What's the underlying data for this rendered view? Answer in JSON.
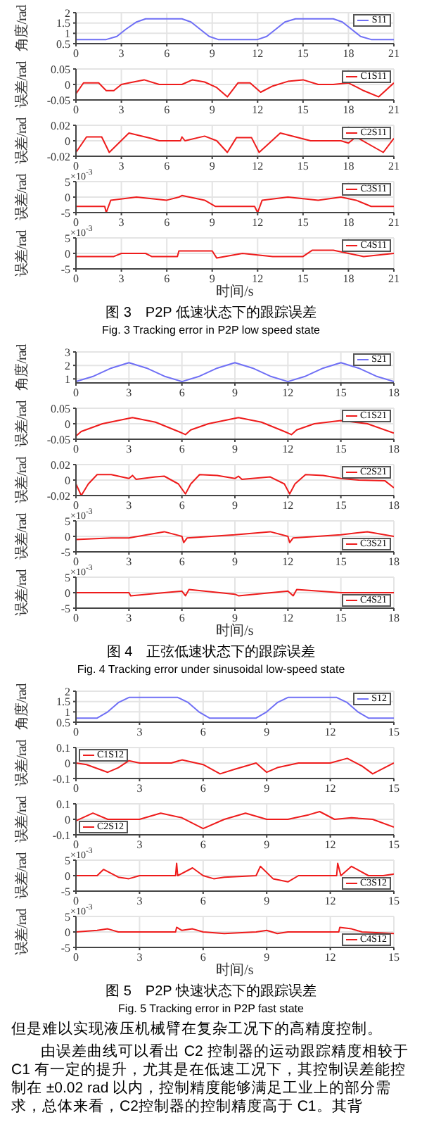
{
  "chart_data": [
    {
      "type": "line",
      "ylabel": "角度/rad",
      "x": [
        0,
        2,
        2.7,
        3.3,
        4,
        4.6,
        7,
        7.6,
        8.2,
        8.8,
        9.4,
        12,
        12.6,
        13.2,
        13.8,
        14.5,
        17,
        17.6,
        18.2,
        18.8,
        19.5,
        21
      ],
      "series": [
        {
          "name": "S11",
          "color": "#6f6ff5",
          "values": [
            0.7,
            0.7,
            0.85,
            1.2,
            1.55,
            1.7,
            1.7,
            1.55,
            1.2,
            0.85,
            0.7,
            0.7,
            0.85,
            1.2,
            1.55,
            1.7,
            1.7,
            1.55,
            1.2,
            0.85,
            0.7,
            0.7
          ]
        }
      ],
      "xlim": [
        0,
        21
      ],
      "xticks": [
        0,
        3,
        6,
        9,
        12,
        15,
        18,
        21
      ],
      "ylim": [
        0.5,
        2
      ],
      "yticks": [
        0.5,
        1,
        1.5,
        2
      ],
      "grid": true,
      "legend": "top right"
    },
    {
      "type": "line",
      "ylabel": "误差/rad",
      "x": [
        0,
        0.5,
        1.5,
        2,
        2.5,
        3,
        3.5,
        4.5,
        5.5,
        7,
        7.7,
        8.5,
        9.3,
        10,
        10.7,
        11.5,
        12.2,
        13,
        14,
        15,
        16,
        17,
        18,
        19,
        20,
        21
      ],
      "series": [
        {
          "name": "C1S11",
          "color": "#ee1c1c",
          "values": [
            -0.03,
            0.005,
            0.005,
            -0.02,
            -0.02,
            0,
            0.005,
            0.015,
            0,
            0,
            0.015,
            0.008,
            -0.01,
            -0.04,
            0.005,
            0.005,
            -0.025,
            -0.005,
            0.01,
            0.015,
            0,
            0,
            0.005,
            -0.02,
            -0.04,
            0.005
          ]
        }
      ],
      "xlim": [
        0,
        21
      ],
      "xticks": [
        0,
        3,
        6,
        9,
        12,
        15,
        18,
        21
      ],
      "ylim": [
        -0.05,
        0.05
      ],
      "yticks": [
        -0.05,
        0,
        0.05
      ],
      "grid": true,
      "legend": "top right"
    },
    {
      "type": "line",
      "ylabel": "误差/rad",
      "x": [
        0,
        0.7,
        1.7,
        2.2,
        3.5,
        5,
        5.5,
        6.9,
        7,
        7.2,
        8.5,
        9.3,
        10,
        10.6,
        11.6,
        12.1,
        13.5,
        15.5,
        17.5,
        18,
        18.5,
        20.3,
        21
      ],
      "series": [
        {
          "name": "C2S11",
          "color": "#ee1c1c",
          "values": [
            -0.015,
            0.005,
            0.005,
            -0.015,
            0.01,
            0.003,
            0,
            0,
            0.005,
            0,
            0.006,
            0,
            -0.015,
            0.004,
            0.004,
            -0.015,
            0.01,
            0,
            0,
            -0.003,
            0.005,
            -0.015,
            0.003
          ]
        }
      ],
      "xlim": [
        0,
        21
      ],
      "xticks": [
        0,
        3,
        6,
        9,
        12,
        15,
        18,
        21
      ],
      "ylim": [
        -0.02,
        0.02
      ],
      "yticks": [
        -0.02,
        0,
        0.02
      ],
      "grid": true,
      "legend": "top right"
    },
    {
      "type": "line",
      "ylabel": "误差/rad",
      "annotations": [
        "×10$^{-3}$"
      ],
      "x": [
        0,
        1.9,
        2,
        2.3,
        4,
        6,
        6.8,
        7,
        8.5,
        9.2,
        11.8,
        12,
        12.3,
        14,
        16,
        17.5,
        18.5,
        19.5,
        21
      ],
      "series": [
        {
          "name": "C3S11",
          "color": "#ee1c1c",
          "values": [
            -3,
            -3,
            -5,
            -1,
            0,
            -1,
            0,
            0.5,
            -1,
            -3,
            -3,
            -5,
            -1,
            0,
            -1,
            0,
            -1,
            -3,
            -3
          ]
        }
      ],
      "xlim": [
        0,
        21
      ],
      "xticks": [
        0,
        3,
        6,
        9,
        12,
        15,
        18,
        21
      ],
      "ylim": [
        -5,
        5
      ],
      "yticks": [
        -5,
        0,
        5
      ],
      "grid": true,
      "legend": "top right"
    },
    {
      "type": "line",
      "ylabel": "误差/rad",
      "xlabel": "时间/s",
      "title": "图 3　P2P 低速状态下的跟踪误差",
      "subtitle": "Fig. 3 Tracking error in P2P low speed state",
      "annotations": [
        "×10$^{-3}$"
      ],
      "x": [
        0,
        2.5,
        3,
        4.6,
        5,
        6.7,
        6.8,
        9,
        9.3,
        11,
        13,
        15,
        15.6,
        17,
        18,
        19,
        21
      ],
      "series": [
        {
          "name": "C4S11",
          "color": "#ee1c1c",
          "values": [
            -1,
            -1,
            0,
            0,
            -1,
            -1,
            0.8,
            0.8,
            -1.5,
            0,
            -1,
            -1,
            1,
            1,
            0,
            -1,
            0
          ]
        }
      ],
      "xlim": [
        0,
        21
      ],
      "xticks": [
        0,
        3,
        6,
        9,
        12,
        15,
        18,
        21
      ],
      "ylim": [
        -5,
        5
      ],
      "yticks": [
        -5,
        0,
        5
      ],
      "grid": true,
      "legend": "top right"
    },
    {
      "type": "line",
      "ylabel": "角度/rad",
      "x": [
        0,
        1,
        2,
        3,
        4,
        5,
        6,
        7,
        8,
        9,
        10,
        11,
        12,
        13,
        14,
        15,
        16,
        17,
        18
      ],
      "series": [
        {
          "name": "S21",
          "color": "#6f6ff5",
          "values": [
            0.8,
            1.2,
            1.8,
            2.2,
            1.8,
            1.2,
            0.8,
            1.2,
            1.8,
            2.2,
            1.8,
            1.2,
            0.8,
            1.2,
            1.8,
            2.2,
            1.8,
            1.2,
            0.8
          ]
        }
      ],
      "xlim": [
        0,
        18
      ],
      "xticks": [
        0,
        3,
        6,
        9,
        12,
        15,
        18
      ],
      "ylim": [
        0.7,
        3
      ],
      "yticks": [
        1,
        2,
        3
      ],
      "grid": true,
      "legend": "top right"
    },
    {
      "type": "line",
      "ylabel": "误差/rad",
      "x": [
        0,
        0.3,
        1.5,
        3.2,
        4.5,
        5.8,
        6.2,
        6.5,
        7.5,
        9.2,
        10.5,
        11.8,
        12.2,
        12.5,
        13.5,
        15,
        16.5,
        18
      ],
      "series": [
        {
          "name": "C1S21",
          "color": "#ee1c1c",
          "values": [
            -0.04,
            -0.025,
            0,
            0.02,
            0.005,
            -0.025,
            -0.035,
            -0.02,
            0,
            0.02,
            0.005,
            -0.025,
            -0.035,
            -0.02,
            0,
            0.01,
            0,
            -0.03
          ]
        }
      ],
      "xlim": [
        0,
        18
      ],
      "xticks": [
        0,
        3,
        6,
        9,
        12,
        15,
        18
      ],
      "ylim": [
        -0.05,
        0.05
      ],
      "yticks": [
        -0.05,
        0,
        0.05
      ],
      "grid": true,
      "legend": "top right"
    },
    {
      "type": "line",
      "ylabel": "误差/rad",
      "x": [
        0,
        0.3,
        0.7,
        1.2,
        2,
        3,
        3.2,
        3.4,
        4.5,
        5,
        5.8,
        6.2,
        6.5,
        7,
        8,
        9,
        9.2,
        9.4,
        11,
        11.8,
        12.1,
        12.4,
        13,
        14,
        15,
        16,
        17.5,
        18
      ],
      "series": [
        {
          "name": "C2S21",
          "color": "#ee1c1c",
          "values": [
            -0.005,
            -0.02,
            -0.005,
            0.007,
            0.007,
            0.002,
            0.006,
            0.001,
            0.004,
            0.005,
            -0.005,
            -0.018,
            -0.005,
            0.007,
            0.006,
            0.002,
            0.005,
            0.001,
            0.004,
            -0.005,
            -0.018,
            -0.005,
            0.007,
            0.006,
            0.002,
            0,
            -0.001,
            -0.01
          ]
        }
      ],
      "xlim": [
        0,
        18
      ],
      "xticks": [
        0,
        3,
        6,
        9,
        12,
        15,
        18
      ],
      "ylim": [
        -0.02,
        0.02
      ],
      "yticks": [
        -0.02,
        0,
        0.02
      ],
      "grid": true,
      "legend": "top right"
    },
    {
      "type": "line",
      "ylabel": "误差/rad",
      "annotations": [
        "×10$^{-3}$"
      ],
      "x": [
        0,
        2,
        3,
        5,
        6,
        6.1,
        6.3,
        9,
        11,
        12,
        12.1,
        12.3,
        15,
        16.5,
        18
      ],
      "series": [
        {
          "name": "C3S21",
          "color": "#ee1c1c",
          "values": [
            -1,
            -0.5,
            -0.5,
            1.5,
            0,
            -2,
            -0.5,
            0.5,
            1.5,
            0,
            -2,
            -0.5,
            0.5,
            1.5,
            0
          ]
        }
      ],
      "xlim": [
        0,
        18
      ],
      "xticks": [
        0,
        3,
        6,
        9,
        12,
        15,
        18
      ],
      "ylim": [
        -5,
        5
      ],
      "yticks": [
        -5,
        0,
        5
      ],
      "grid": true,
      "legend": "bottom right"
    },
    {
      "type": "line",
      "ylabel": "误差/rad",
      "xlabel": "时间/s",
      "title": "图 4　正弦低速状态下的跟踪误差",
      "subtitle": "Fig. 4 Tracking error under sinusoidal low-speed state",
      "annotations": [
        "×10$^{-3}$"
      ],
      "x": [
        0,
        3,
        3.1,
        5,
        6,
        6.2,
        6.4,
        9,
        9.2,
        12,
        12.3,
        12.5,
        15,
        18
      ],
      "series": [
        {
          "name": "C4S21",
          "color": "#ee1c1c",
          "values": [
            0,
            0,
            -1,
            0,
            0.5,
            -1,
            1,
            -0.5,
            -1,
            0.5,
            -1,
            1,
            0,
            0
          ]
        }
      ],
      "xlim": [
        0,
        18
      ],
      "xticks": [
        0,
        3,
        6,
        9,
        12,
        15,
        18
      ],
      "ylim": [
        -5,
        5
      ],
      "yticks": [
        -5,
        0,
        5
      ],
      "grid": true,
      "legend": "bottom right"
    },
    {
      "type": "line",
      "ylabel": "角度/rad",
      "x": [
        0,
        1,
        1.5,
        2,
        2.5,
        4.8,
        5.3,
        5.8,
        6.3,
        8.5,
        9,
        9.5,
        10,
        12.3,
        12.8,
        13.3,
        13.8,
        15
      ],
      "series": [
        {
          "name": "S12",
          "color": "#6f6ff5",
          "values": [
            0.7,
            0.7,
            1,
            1.45,
            1.7,
            1.7,
            1.45,
            1,
            0.7,
            0.7,
            1,
            1.45,
            1.7,
            1.7,
            1.45,
            1,
            0.7,
            0.7
          ]
        }
      ],
      "xlim": [
        0,
        15
      ],
      "xticks": [
        0,
        3,
        6,
        9,
        12,
        15
      ],
      "ylim": [
        0.5,
        2
      ],
      "yticks": [
        0.5,
        1,
        1.5,
        2
      ],
      "grid": true,
      "legend": "top right"
    },
    {
      "type": "line",
      "ylabel": "误差/rad",
      "x": [
        0,
        0.5,
        1.5,
        2,
        2.5,
        3,
        4.5,
        5,
        6,
        6.8,
        7.5,
        8.5,
        9,
        9.5,
        10.5,
        12,
        12.8,
        13.5,
        14,
        15
      ],
      "series": [
        {
          "name": "C1S12",
          "color": "#ee1c1c",
          "values": [
            0,
            -0.01,
            -0.06,
            -0.03,
            0.015,
            0,
            0,
            0.02,
            -0.01,
            -0.07,
            -0.04,
            0,
            -0.06,
            -0.03,
            0,
            0,
            0.03,
            -0.02,
            -0.07,
            0
          ]
        }
      ],
      "xlim": [
        0,
        15
      ],
      "xticks": [
        0,
        3,
        6,
        9,
        12,
        15
      ],
      "ylim": [
        -0.1,
        0.1
      ],
      "yticks": [
        -0.1,
        0,
        0.1
      ],
      "grid": true,
      "legend": "top left"
    },
    {
      "type": "line",
      "ylabel": "误差/rad",
      "x": [
        0,
        0.8,
        1.5,
        3,
        4,
        5,
        6,
        7,
        8,
        9,
        10,
        11,
        11.5,
        12.2,
        13,
        14,
        15
      ],
      "series": [
        {
          "name": "C2S12",
          "color": "#ee1c1c",
          "values": [
            -0.01,
            0.04,
            0,
            0,
            0.04,
            0.01,
            -0.06,
            0,
            0.04,
            0,
            0,
            0.03,
            0.05,
            0,
            0.01,
            0,
            -0.05
          ]
        }
      ],
      "xlim": [
        0,
        15
      ],
      "xticks": [
        0,
        3,
        6,
        9,
        12,
        15
      ],
      "ylim": [
        -0.1,
        0.1
      ],
      "yticks": [
        -0.1,
        0,
        0.1
      ],
      "grid": true,
      "legend": "bottom left"
    },
    {
      "type": "line",
      "ylabel": "误差/rad",
      "annotations": [
        "×10$^{-3}$"
      ],
      "x": [
        0,
        1,
        1.3,
        2,
        2.5,
        3,
        4.7,
        4.75,
        4.8,
        5.5,
        6,
        6.5,
        7,
        8.5,
        8.7,
        9.3,
        10,
        10.5,
        12.3,
        12.35,
        12.5,
        13,
        13.8,
        14.5,
        15
      ],
      "series": [
        {
          "name": "C3S12",
          "color": "#ee1c1c",
          "values": [
            0,
            0,
            2,
            -0.5,
            -1,
            0,
            0,
            4,
            0,
            2.5,
            0,
            -1,
            -0.5,
            0,
            3,
            -1,
            -2,
            0,
            0,
            4,
            0,
            3,
            0,
            0,
            0.5
          ]
        }
      ],
      "xlim": [
        0,
        15
      ],
      "xticks": [
        0,
        3,
        6,
        9,
        12,
        15
      ],
      "ylim": [
        -5,
        5
      ],
      "yticks": [
        -5,
        0,
        5
      ],
      "grid": true,
      "legend": "bottom right"
    },
    {
      "type": "line",
      "ylabel": "误差/rad",
      "xlabel": "时间/s",
      "title": "图 5　P2P 快速状态下的跟踪误差",
      "subtitle": "Fig. 5 Tracking error in P2P fast state",
      "annotations": [
        "×10$^{-3}$",
        "但是难以实现液压机械臂在复杂工况下的高精度控制。",
        "由误差曲线可以看出 C2 控制器的运动跟踪精度相较于 C1 有一定的提升，尤其是在低速工况下，其控制误差能控制在 ±0.02 rad 以内，控制精度能够满足工业上的部分需求，总体来看，C2控制器的控制精度高于 C1。其背"
      ],
      "x": [
        0,
        1,
        1.5,
        2,
        3,
        4.7,
        4.75,
        5,
        5.5,
        6,
        7,
        8.5,
        9,
        9.5,
        10,
        12.4,
        12.45,
        13,
        13.5,
        15
      ],
      "series": [
        {
          "name": "C4S12",
          "color": "#ee1c1c",
          "values": [
            0,
            0.5,
            1,
            0,
            0,
            0,
            1.5,
            0.5,
            1,
            0,
            -0.5,
            0,
            0.5,
            -0.5,
            0,
            0,
            1.5,
            1,
            0,
            -0.5
          ]
        }
      ],
      "xlim": [
        0,
        15
      ],
      "xticks": [
        0,
        3,
        6,
        9,
        12,
        15
      ],
      "ylim": [
        -5,
        5
      ],
      "yticks": [
        -5,
        0,
        5
      ],
      "grid": true,
      "legend": "bottom right"
    }
  ]
}
